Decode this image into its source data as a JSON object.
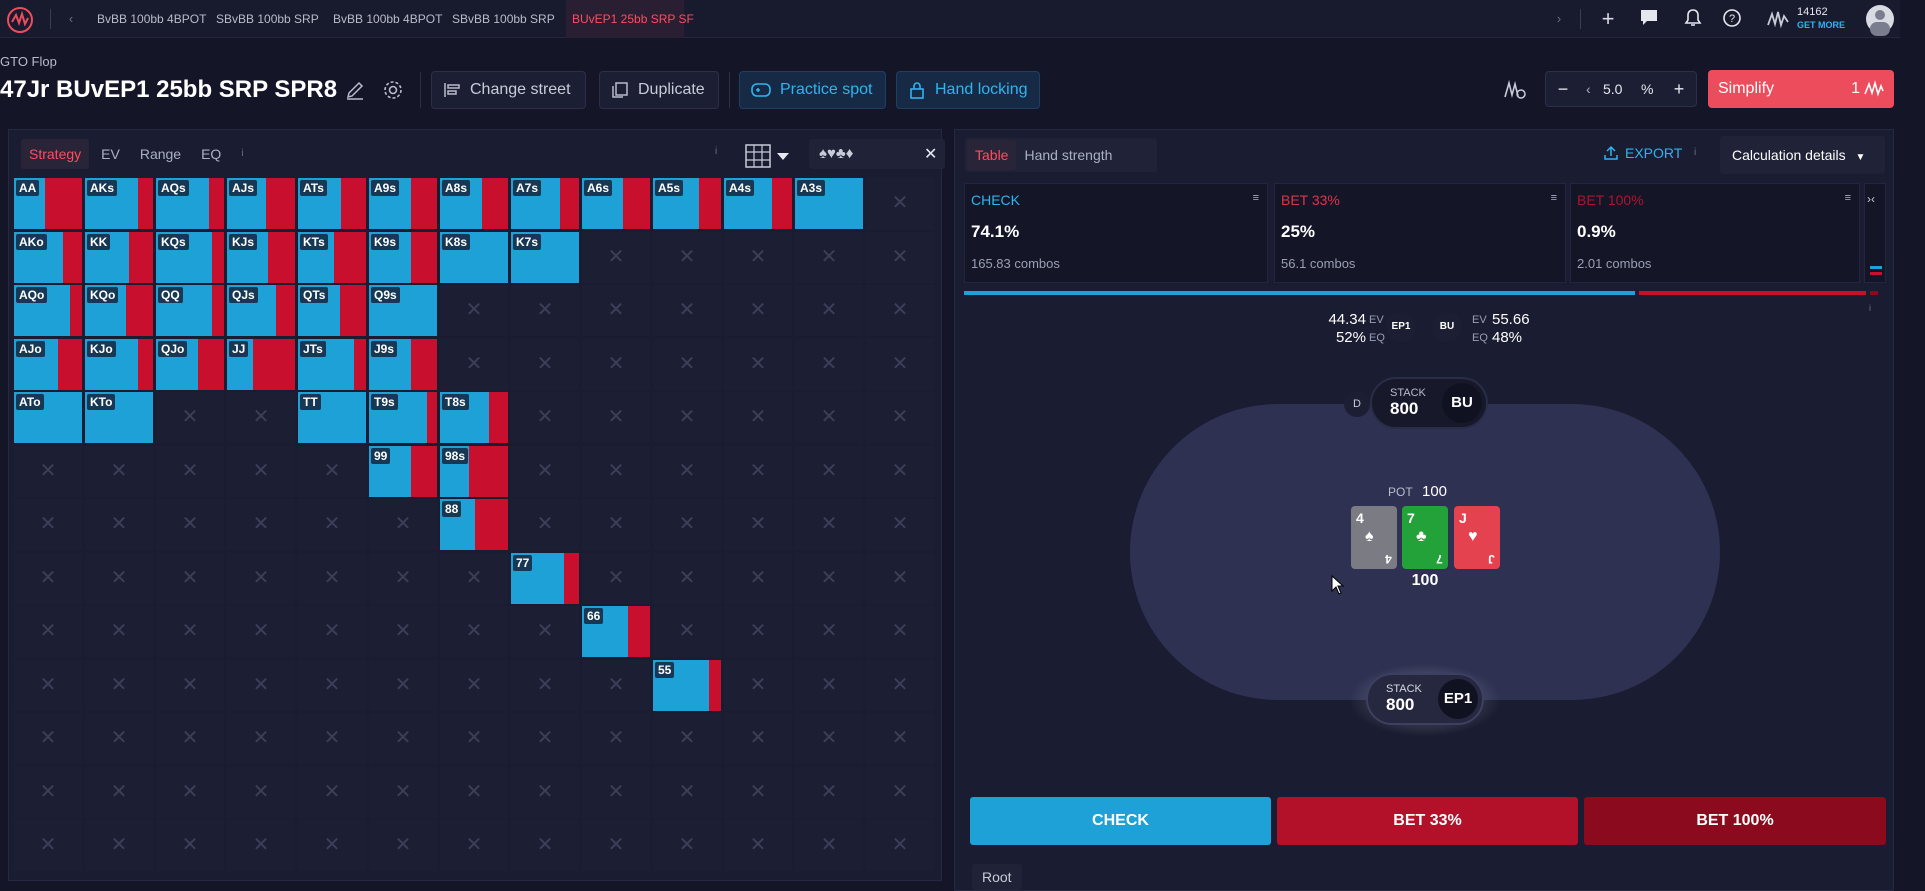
{
  "topbar": {
    "tabs": [
      "BvBB 100bb 4BPOT",
      "SBvBB 100bb SRP",
      "BvBB 100bb 4BPOT",
      "SBvBB 100bb SRP",
      "BUvEP1 25bb SRP SF"
    ],
    "credits": "14162",
    "get_more": "GET MORE"
  },
  "header": {
    "breadcrumb": "GTO Flop",
    "title": "47Jr BUvEP1 25bb SRP SPR8",
    "change_street": "Change street",
    "duplicate": "Duplicate",
    "practice_spot": "Practice spot",
    "hand_locking": "Hand locking",
    "zoom_value": "5.0",
    "zoom_unit": "%",
    "simplify": "Simplify",
    "simplify_count": "1"
  },
  "left": {
    "tabs": [
      "Strategy",
      "EV",
      "Range",
      "EQ"
    ],
    "info": "i"
  },
  "grid": [
    [
      "AA:0.45",
      "AKs:0.78",
      "AQs:0.78",
      "AJs:0.58",
      "ATs:0.63",
      "A9s:0.62",
      "A8s:0.62",
      "A7s:0.72",
      "A6s:0.6",
      "A5s:0.68",
      "A4s:0.7",
      "A3s:1.0",
      "x"
    ],
    [
      "AKo:0.72",
      "KK:0.65",
      "KQs:0.82",
      "KJs:0.6",
      "KTs:0.53",
      "K9s:0.62",
      "K8s:1.0",
      "K7s:1.0",
      "x",
      "x",
      "x",
      "x",
      "x"
    ],
    [
      "AQo:0.82",
      "KQo:0.6",
      "QQ:0.82",
      "QJs:0.72",
      "QTs:0.62",
      "Q9s:1.0",
      "x",
      "x",
      "x",
      "x",
      "x",
      "x",
      "x"
    ],
    [
      "AJo:0.65",
      "KJo:0.78",
      "QJo:0.62",
      "JJ:0.38",
      "JTs:0.82",
      "J9s:0.62",
      "x",
      "x",
      "x",
      "x",
      "x",
      "x",
      "x"
    ],
    [
      "ATo:1.0",
      "KTo:1.0",
      "x",
      "x",
      "TT:1.0",
      "T9s:0.85",
      "T8s:0.72",
      "x",
      "x",
      "x",
      "x",
      "x",
      "x"
    ],
    [
      "x",
      "x",
      "x",
      "x",
      "x",
      "99:0.62",
      "98s:0.42",
      "x",
      "x",
      "x",
      "x",
      "x",
      "x"
    ],
    [
      "x",
      "x",
      "x",
      "x",
      "x",
      "x",
      "88:0.52",
      "x",
      "x",
      "x",
      "x",
      "x",
      "x"
    ],
    [
      "x",
      "x",
      "x",
      "x",
      "x",
      "x",
      "x",
      "77:0.78",
      "x",
      "x",
      "x",
      "x",
      "x"
    ],
    [
      "x",
      "x",
      "x",
      "x",
      "x",
      "x",
      "x",
      "x",
      "66:0.68",
      "x",
      "x",
      "x",
      "x"
    ],
    [
      "x",
      "x",
      "x",
      "x",
      "x",
      "x",
      "x",
      "x",
      "x",
      "55:0.82",
      "x",
      "x",
      "x"
    ],
    [
      "x",
      "x",
      "x",
      "x",
      "x",
      "x",
      "x",
      "x",
      "x",
      "x",
      "x",
      "x",
      "x"
    ],
    [
      "x",
      "x",
      "x",
      "x",
      "x",
      "x",
      "x",
      "x",
      "x",
      "x",
      "x",
      "x",
      "x"
    ],
    [
      "x",
      "x",
      "x",
      "x",
      "x",
      "x",
      "x",
      "x",
      "x",
      "x",
      "x",
      "x",
      "x"
    ]
  ],
  "right": {
    "tabs": [
      "Table",
      "Hand strength"
    ],
    "export": "EXPORT",
    "calc_details": "Calculation details",
    "actions": [
      {
        "name": "CHECK",
        "pct": "74.1%",
        "combos": "165.83 combos",
        "color": "#1da1d6"
      },
      {
        "name": "BET 33%",
        "pct": "25%",
        "combos": "56.1 combos",
        "color": "#c8102e"
      },
      {
        "name": "BET 100%",
        "pct": "0.9%",
        "combos": "2.01 combos",
        "color": "#8b0a1e"
      }
    ],
    "freq_fractions": [
      0.741,
      0.25,
      0.009
    ]
  },
  "table": {
    "ep1_ev": "44.34",
    "ep1_eq": "52%",
    "ev_label": "EV",
    "eq_label": "EQ",
    "bu_ev": "55.66",
    "bu_eq": "48%",
    "ep1": "EP1",
    "bu": "BU",
    "dealer": "D",
    "stack_label": "STACK",
    "bu_stack": "800",
    "ep1_stack": "800",
    "pot_label": "POT",
    "pot": "100",
    "pot_below": "100",
    "board": [
      {
        "rank": "4",
        "suit": "♠",
        "color": "#7b7b83"
      },
      {
        "rank": "7",
        "suit": "♣",
        "color": "#23a23a"
      },
      {
        "rank": "J",
        "suit": "♥",
        "color": "#e4424f"
      }
    ]
  },
  "bottom": {
    "buttons": [
      "CHECK",
      "BET 33%",
      "BET 100%"
    ],
    "root": "Root"
  }
}
